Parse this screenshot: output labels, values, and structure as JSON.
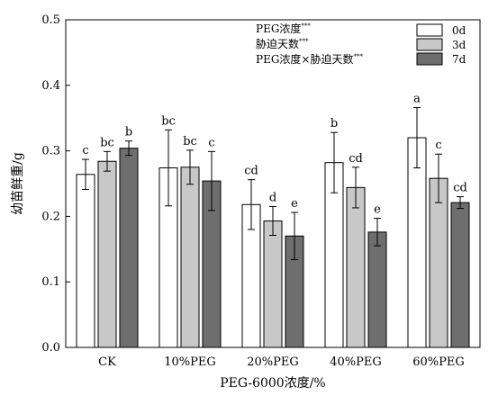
{
  "chart_data": {
    "type": "bar",
    "xlabel": "PEG-6000浓度/%",
    "ylabel": "幼苗鲜重/g",
    "ylim": [
      0,
      0.5
    ],
    "yticks": [
      "0.0",
      "0.1",
      "0.2",
      "0.3",
      "0.4",
      "0.5"
    ],
    "categories": [
      "CK",
      "10%PEG",
      "20%PEG",
      "40%PEG",
      "60%PEG"
    ],
    "series": [
      {
        "name": "0d",
        "color": "#ffffff",
        "values": [
          0.264,
          0.274,
          0.218,
          0.282,
          0.32
        ],
        "errors": [
          0.023,
          0.058,
          0.038,
          0.046,
          0.046
        ],
        "letters": [
          "c",
          "bc",
          "cd",
          "b",
          "a"
        ]
      },
      {
        "name": "3d",
        "color": "#c8c8c8",
        "values": [
          0.284,
          0.275,
          0.193,
          0.244,
          0.258
        ],
        "errors": [
          0.015,
          0.026,
          0.022,
          0.031,
          0.037
        ],
        "letters": [
          "bc",
          "bc",
          "d",
          "cd",
          "c"
        ]
      },
      {
        "name": "7d",
        "color": "#6e6e6e",
        "values": [
          0.304,
          0.254,
          0.17,
          0.176,
          0.221
        ],
        "errors": [
          0.011,
          0.045,
          0.036,
          0.021,
          0.009
        ],
        "letters": [
          "b",
          "c",
          "e",
          "e",
          "cd"
        ]
      }
    ],
    "legend_position": "top-right",
    "stats_text": [
      {
        "label": "PEG浓度",
        "sig": "***"
      },
      {
        "label": "胁迫天数",
        "sig": "***"
      },
      {
        "label": "PEG浓度×胁迫天数",
        "sig": "***"
      }
    ],
    "grid": false
  }
}
